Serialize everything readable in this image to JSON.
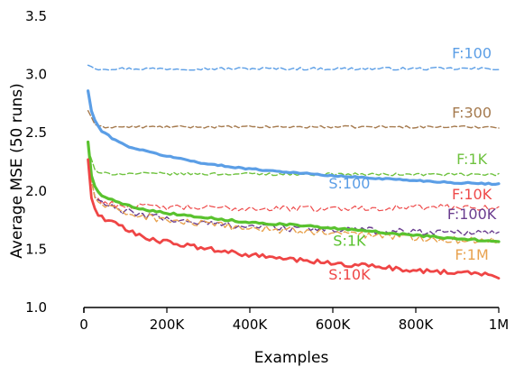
{
  "chart_data": {
    "type": "line",
    "title": "",
    "xlabel": "Examples",
    "ylabel": "Average MSE (50 runs)",
    "xlim": [
      0,
      1000000
    ],
    "ylim": [
      1.0,
      3.5
    ],
    "grid": false,
    "legend": "inline labels",
    "x_ticks": [
      {
        "value": 0,
        "label": "0"
      },
      {
        "value": 200000,
        "label": "200K"
      },
      {
        "value": 400000,
        "label": "400K"
      },
      {
        "value": 600000,
        "label": "600K"
      },
      {
        "value": 800000,
        "label": "800K"
      },
      {
        "value": 1000000,
        "label": "1M"
      }
    ],
    "y_ticks": [
      {
        "value": 1.0,
        "label": "1.0"
      },
      {
        "value": 1.5,
        "label": "1.5"
      },
      {
        "value": 2.0,
        "label": "2.0"
      },
      {
        "value": 2.5,
        "label": "2.5"
      },
      {
        "value": 3.0,
        "label": "3.0"
      },
      {
        "value": 3.5,
        "label": "3.5"
      }
    ],
    "series": [
      {
        "name": "F:100",
        "color": "#5b9ee6",
        "dash": true,
        "width": 1.4,
        "noise": 0.012,
        "x": [
          10000,
          30000,
          1000000
        ],
        "y": [
          3.08,
          3.05,
          3.05
        ],
        "label_x": 935000,
        "label_y": 3.14
      },
      {
        "name": "F:300",
        "color": "#a57a4e",
        "dash": true,
        "width": 1.4,
        "noise": 0.01,
        "x": [
          10000,
          30000,
          1000000
        ],
        "y": [
          2.69,
          2.55,
          2.55
        ],
        "label_x": 935000,
        "label_y": 2.63
      },
      {
        "name": "F:1K",
        "color": "#6fc23f",
        "dash": true,
        "width": 1.4,
        "noise": 0.012,
        "x": [
          10000,
          30000,
          1000000
        ],
        "y": [
          2.36,
          2.15,
          2.14
        ],
        "label_x": 935000,
        "label_y": 2.23
      },
      {
        "name": "S:100",
        "color": "#5b9ee6",
        "dash": false,
        "width": 3.2,
        "noise": 0.006,
        "x": [
          10000,
          20000,
          40000,
          70000,
          100000,
          150000,
          200000,
          300000,
          400000,
          500000,
          600000,
          700000,
          800000,
          900000,
          1000000
        ],
        "y": [
          2.86,
          2.65,
          2.52,
          2.45,
          2.39,
          2.34,
          2.3,
          2.23,
          2.19,
          2.16,
          2.13,
          2.11,
          2.09,
          2.07,
          2.06
        ],
        "label_x": 640000,
        "label_y": 2.02
      },
      {
        "name": "F:10K",
        "color": "#ee4a4a",
        "dash": true,
        "width": 1.2,
        "noise": 0.025,
        "x": [
          10000,
          25000,
          50000,
          100000,
          200000,
          400000,
          600000,
          800000,
          1000000
        ],
        "y": [
          2.26,
          1.95,
          1.9,
          1.87,
          1.86,
          1.85,
          1.85,
          1.86,
          1.86
        ],
        "label_x": 935000,
        "label_y": 1.93
      },
      {
        "name": "F:100K",
        "color": "#6a3d8f",
        "dash": true,
        "width": 1.4,
        "noise": 0.03,
        "x": [
          10000,
          25000,
          50000,
          100000,
          200000,
          300000,
          400000,
          500000,
          600000,
          700000,
          800000,
          900000,
          1000000
        ],
        "y": [
          2.26,
          1.95,
          1.88,
          1.82,
          1.76,
          1.72,
          1.7,
          1.68,
          1.67,
          1.66,
          1.65,
          1.65,
          1.65
        ],
        "label_x": 935000,
        "label_y": 1.76
      },
      {
        "name": "F:1M",
        "color": "#e8a24e",
        "dash": true,
        "width": 1.4,
        "noise": 0.03,
        "x": [
          10000,
          25000,
          50000,
          100000,
          200000,
          300000,
          400000,
          500000,
          600000,
          700000,
          800000,
          900000,
          1000000
        ],
        "y": [
          2.26,
          1.94,
          1.87,
          1.81,
          1.75,
          1.71,
          1.68,
          1.66,
          1.64,
          1.62,
          1.6,
          1.58,
          1.57
        ],
        "label_x": 935000,
        "label_y": 1.41
      },
      {
        "name": "S:1K",
        "color": "#59c22e",
        "dash": false,
        "width": 3.2,
        "noise": 0.008,
        "x": [
          10000,
          20000,
          40000,
          70000,
          100000,
          150000,
          200000,
          300000,
          400000,
          500000,
          600000,
          700000,
          800000,
          900000,
          1000000
        ],
        "y": [
          2.42,
          2.07,
          1.97,
          1.92,
          1.88,
          1.84,
          1.81,
          1.77,
          1.73,
          1.71,
          1.68,
          1.65,
          1.62,
          1.59,
          1.57
        ],
        "label_x": 640000,
        "label_y": 1.53
      },
      {
        "name": "S:10K",
        "color": "#ef4545",
        "dash": false,
        "width": 2.8,
        "noise": 0.02,
        "x": [
          10000,
          20000,
          40000,
          70000,
          100000,
          150000,
          200000,
          300000,
          400000,
          500000,
          600000,
          700000,
          800000,
          900000,
          1000000
        ],
        "y": [
          2.27,
          1.87,
          1.78,
          1.73,
          1.67,
          1.6,
          1.56,
          1.5,
          1.45,
          1.41,
          1.38,
          1.35,
          1.32,
          1.3,
          1.27
        ],
        "label_x": 640000,
        "label_y": 1.24
      }
    ]
  }
}
